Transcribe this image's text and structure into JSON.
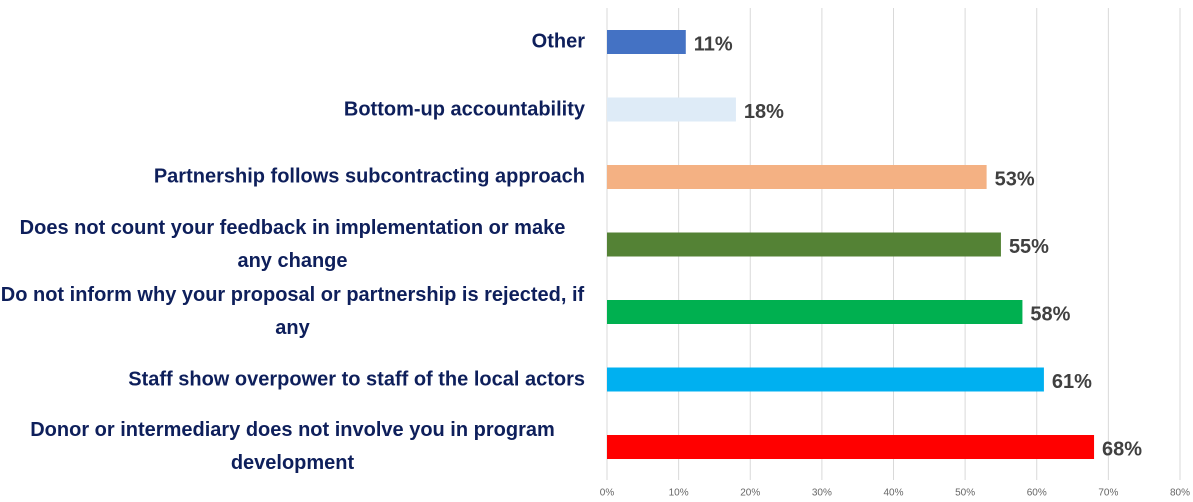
{
  "chart_data": {
    "type": "barh",
    "categories": [
      "Other",
      "Bottom-up accountability",
      "Partnership follows subcontracting approach",
      "Does not count your feedback in implementation or make any change",
      "Do not inform why your proposal or partnership is rejected, if any",
      "Staff show overpower to staff of the local actors",
      "Donor or intermediary does not involve you in program development"
    ],
    "values": [
      11,
      18,
      53,
      55,
      58,
      61,
      68
    ],
    "value_labels": [
      "11%",
      "18%",
      "53%",
      "55%",
      "58%",
      "61%",
      "68%"
    ],
    "colors": [
      "#4472c4",
      "#deebf7",
      "#f4b183",
      "#548235",
      "#00b050",
      "#00b0f0",
      "#ff0000"
    ],
    "xlim": [
      0,
      80
    ],
    "xticks": [
      {
        "value": 0,
        "label": "0%"
      },
      {
        "value": 10,
        "label": "10%"
      },
      {
        "value": 20,
        "label": "20%"
      },
      {
        "value": 30,
        "label": "30%"
      },
      {
        "value": 40,
        "label": "40%"
      },
      {
        "value": 50,
        "label": "50%"
      },
      {
        "value": 60,
        "label": "60%"
      },
      {
        "value": 70,
        "label": "70%"
      },
      {
        "value": 80,
        "label": "80%"
      }
    ],
    "grid": true
  }
}
